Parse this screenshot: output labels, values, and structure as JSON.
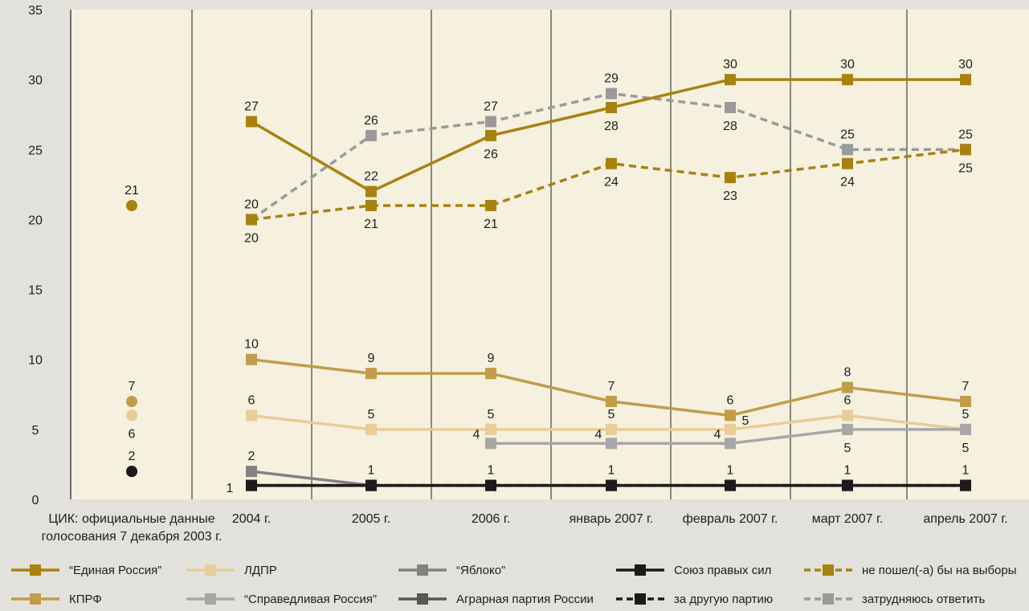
{
  "colors": {
    "page_bg": "#e3e1dc",
    "plot_bg": "#f6f0df",
    "edinaya_rossiya": "#a88210",
    "kprf": "#c19d49",
    "ldpr": "#e9cd96",
    "sprav_rossiya": "#a7a7a7",
    "yabloko": "#828282",
    "agrarnaya": "#575757",
    "sps": "#1b1b1b",
    "drugaya": "#1b1b1b",
    "ne_poshel": "#a88210",
    "zatrudnyayus": "#9a9a9a"
  },
  "chart_data": {
    "type": "line",
    "title": "",
    "xlabel": "",
    "ylabel": "",
    "ylim": [
      0,
      35
    ],
    "yticks": [
      0,
      5,
      10,
      15,
      20,
      25,
      30,
      35
    ],
    "grid": "vertical lines between categories",
    "legend_placement": "bottom",
    "categories": [
      "ЦИК: официальные данные голосования 7 декабря 2003 г.",
      "2004 г.",
      "2005 г.",
      "2006 г.",
      "январь 2007 г.",
      "февраль 2007 г.",
      "март 2007 г.",
      "апрель 2007 г."
    ],
    "category_labels": [
      [
        "ЦИК: официальные данные",
        "голосования 7 декабря 2003 г."
      ],
      [
        "2004 г."
      ],
      [
        "2005 г."
      ],
      [
        "2006 г."
      ],
      [
        "январь 2007 г."
      ],
      [
        "февраль 2007 г."
      ],
      [
        "март 2007 г."
      ],
      [
        "апрель 2007 г."
      ]
    ],
    "series": [
      {
        "key": "edinaya_rossiya",
        "name": "“Единая Россия”",
        "style": "solid",
        "values": [
          21,
          27,
          22,
          26,
          28,
          30,
          30,
          30
        ],
        "labels": [
          "21",
          "27",
          "22",
          "26",
          "28",
          "30",
          "30",
          "30"
        ]
      },
      {
        "key": "kprf",
        "name": "КПРФ",
        "style": "solid",
        "values": [
          7,
          10,
          9,
          9,
          7,
          6,
          8,
          7
        ],
        "labels": [
          "7",
          "10",
          "9",
          "9",
          "7",
          "6",
          "8",
          "7"
        ]
      },
      {
        "key": "ldpr",
        "name": "ЛДПР",
        "style": "solid",
        "values": [
          6,
          6,
          5,
          5,
          5,
          5,
          6,
          5
        ],
        "labels": [
          "6",
          "6",
          "5",
          "5",
          "5",
          "5",
          "6",
          "5"
        ]
      },
      {
        "key": "sprav_rossiya",
        "name": "“Справедливая Россия”",
        "style": "solid",
        "values": [
          null,
          null,
          null,
          4,
          4,
          4,
          5,
          5
        ],
        "labels": [
          "",
          "",
          "",
          "4",
          "4",
          "4",
          "5",
          "5"
        ]
      },
      {
        "key": "yabloko",
        "name": "“Яблоко”",
        "style": "solid",
        "values": [
          2,
          2,
          1,
          null,
          null,
          null,
          null,
          null
        ],
        "labels": [
          "2",
          "2",
          "",
          "",
          "",
          "",
          "",
          ""
        ]
      },
      {
        "key": "agrarnaya",
        "name": "Аграрная партия России",
        "style": "solid",
        "values": [
          2,
          1,
          1,
          1,
          1,
          1,
          1,
          1
        ],
        "labels": [
          "",
          "",
          "",
          "",
          "",
          "",
          "",
          ""
        ]
      },
      {
        "key": "sps",
        "name": "Союз правых сил",
        "style": "solid",
        "values": [
          2,
          1,
          1,
          1,
          1,
          1,
          1,
          1
        ],
        "labels": [
          "",
          "1",
          "1",
          "1",
          "1",
          "1",
          "1",
          "1"
        ]
      },
      {
        "key": "drugaya",
        "name": "за другую партию",
        "style": "dashed",
        "values": [
          null,
          1,
          1,
          1,
          1,
          1,
          1,
          1
        ],
        "labels": [
          "",
          "",
          "",
          "",
          "",
          "",
          "",
          ""
        ]
      },
      {
        "key": "ne_poshel",
        "name": "не пошел(-а) бы на выборы",
        "style": "dashed",
        "values": [
          null,
          20,
          21,
          21,
          24,
          23,
          24,
          25
        ],
        "labels": [
          "",
          "20",
          "21",
          "21",
          "24",
          "23",
          "24",
          "25"
        ]
      },
      {
        "key": "zatrudnyayus",
        "name": "затрудняюсь ответить",
        "style": "dashed",
        "values": [
          null,
          20,
          26,
          27,
          29,
          28,
          25,
          25
        ],
        "labels": [
          "",
          "20",
          "26",
          "27",
          "29",
          "28",
          "25",
          "25"
        ]
      }
    ]
  }
}
